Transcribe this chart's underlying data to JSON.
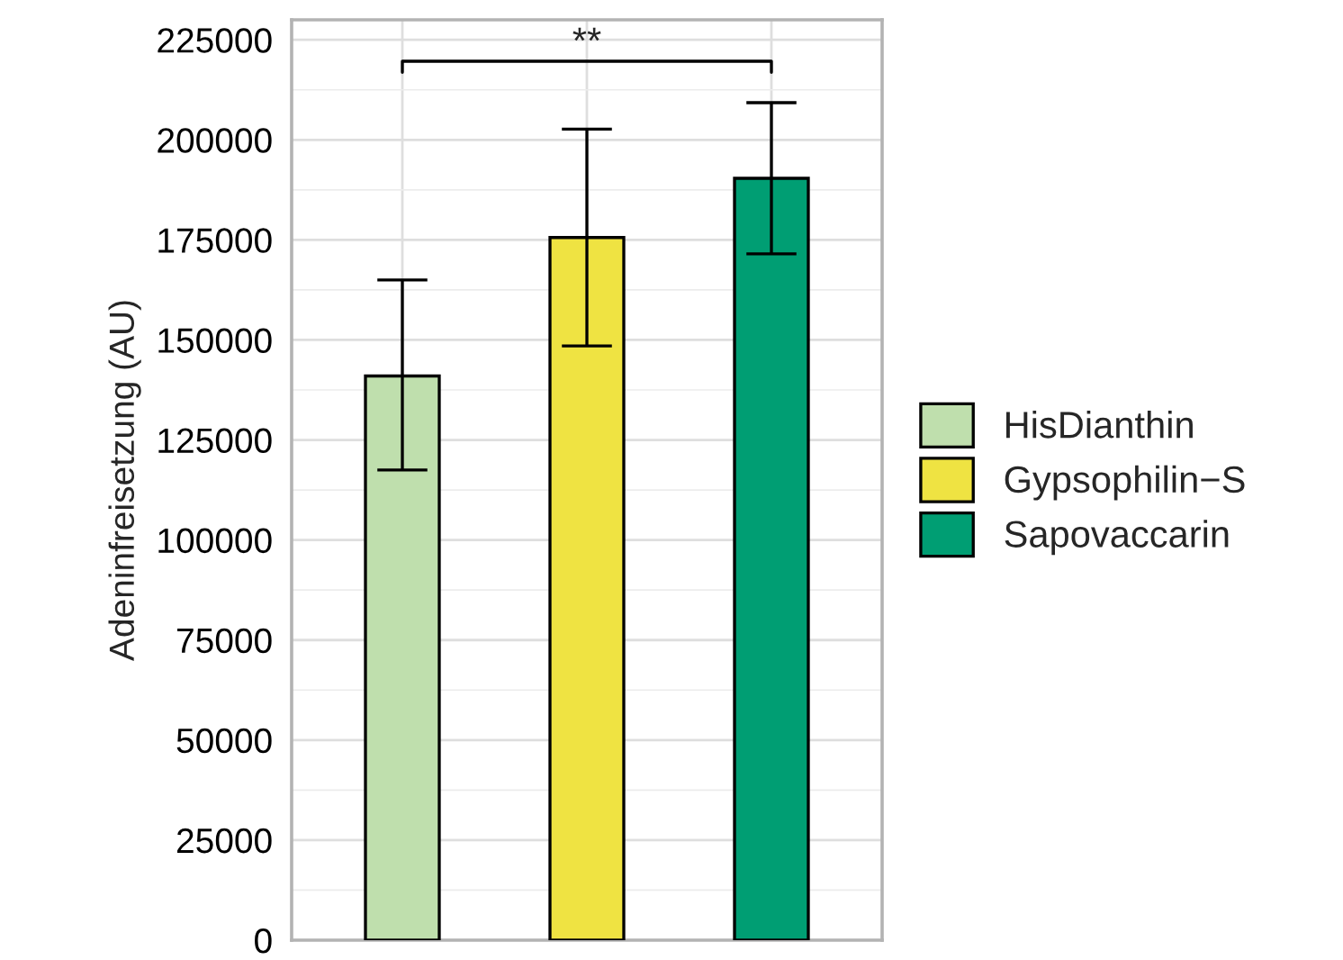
{
  "chart_data": {
    "type": "bar",
    "ylabel": "Adeninfreisetzung (AU)",
    "categories": [
      null,
      null,
      null
    ],
    "series": [
      {
        "name": "HisDianthin",
        "color": "#bfdfad",
        "values": [
          141000,
          null,
          null
        ],
        "errors": [
          [
            117500,
            165000
          ],
          null,
          null
        ]
      },
      {
        "name": "Gypsophilin−S",
        "color": "#efe342",
        "values": [
          null,
          175600,
          null
        ],
        "errors": [
          null,
          [
            148500,
            202700
          ],
          null
        ]
      },
      {
        "name": "Sapovaccarin",
        "color": "#009e73",
        "values": [
          null,
          null,
          190400
        ],
        "errors": [
          null,
          null,
          [
            171500,
            209300
          ]
        ]
      }
    ],
    "annotations": [
      "**"
    ],
    "ylim": [
      0,
      230000
    ],
    "yticks": [
      0,
      25000,
      50000,
      75000,
      100000,
      125000,
      150000,
      175000,
      200000,
      225000
    ],
    "grid": true,
    "legend": "right"
  }
}
